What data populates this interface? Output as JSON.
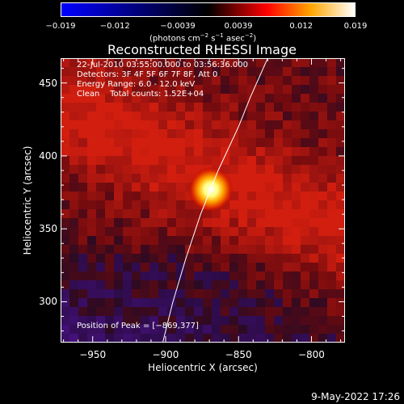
{
  "colorbar": {
    "ticks": [
      "−0.019",
      "−0.012",
      "−0.0039",
      "0.0039",
      "0.012",
      "0.019"
    ],
    "units_prefix": "(photons cm",
    "units_exp1": "−2",
    "units_mid": " s",
    "units_exp2": "−1",
    "units_mid2": " asec",
    "units_exp3": "−2",
    "units_suffix": ")",
    "colors": [
      "#0000ff",
      "#000000",
      "#ff0000",
      "#ffa500",
      "#ffffff"
    ]
  },
  "title": "Reconstructed RHESSI Image",
  "info": {
    "line1": "22-Jul-2010 03:55:00.000 to 03:56:36.000",
    "line2": "Detectors: 3F 4F 5F 6F 7F 8F, Att 0",
    "line3": "Energy Range: 6.0 - 12.0 keV",
    "line4": "Clean    Total counts: 1.52E+04"
  },
  "peak_label": "Position of Peak = [−869,377]",
  "chart_data": {
    "type": "heatmap",
    "xlabel": "Heliocentric X (arcsec)",
    "ylabel": "Heliocentric Y (arcsec)",
    "xlim": [
      -972,
      -777
    ],
    "ylim": [
      272,
      467
    ],
    "x_ticks": [
      -950,
      -900,
      -850,
      -800
    ],
    "x_tick_labels": [
      "−950",
      "−900",
      "−850",
      "−800"
    ],
    "y_ticks": [
      300,
      350,
      400,
      450
    ],
    "y_tick_labels": [
      "300",
      "350",
      "400",
      "450"
    ],
    "colorbar_range": [
      -0.019,
      0.019
    ],
    "peak": {
      "x": -869,
      "y": 377
    },
    "limb_curve": [
      [
        -902,
        272
      ],
      [
        -895,
        300
      ],
      [
        -886,
        330
      ],
      [
        -876,
        360
      ],
      [
        -864,
        390
      ],
      [
        -850,
        420
      ],
      [
        -842,
        440
      ],
      [
        -830,
        467
      ]
    ]
  },
  "date": "9-May-2022 17:26"
}
